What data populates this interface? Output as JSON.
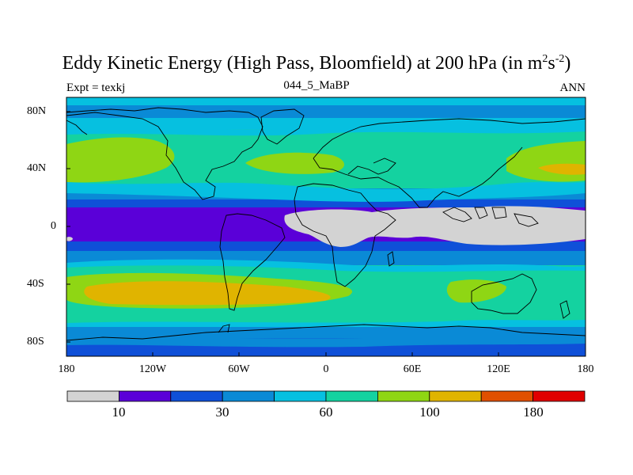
{
  "title": {
    "main": "Eddy Kinetic Energy (High Pass, Bloomfield) at 200 hPa (in m",
    "sup1": "2",
    "mid": "s",
    "sup2": "-2",
    "end": ")"
  },
  "subtitle_left": "Expt = texkj",
  "subtitle_center": "044_5_MaBP",
  "subtitle_right": "ANN",
  "map": {
    "lon_range": [
      -180,
      180
    ],
    "lat_range": [
      -90,
      90
    ],
    "x_ticks": [
      "180",
      "120W",
      "60W",
      "0",
      "60E",
      "120E",
      "180"
    ],
    "y_ticks": [
      "80N",
      "40N",
      "0",
      "40S",
      "80S"
    ]
  },
  "colorbar": {
    "colors": [
      "#d3d3d3",
      "#5a00d8",
      "#0f50d8",
      "#0a8ad6",
      "#06c0e0",
      "#14d2a0",
      "#8fd614",
      "#e0b400",
      "#e05000",
      "#e00000"
    ],
    "labels": [
      "10",
      "30",
      "60",
      "100",
      "180"
    ]
  }
}
